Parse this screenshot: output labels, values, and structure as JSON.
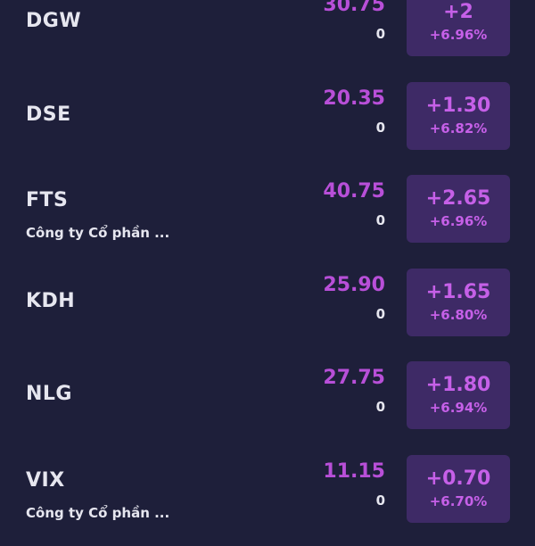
{
  "stocks": [
    {
      "ticker": "DGW",
      "company": "",
      "price": "30.75",
      "volume": "0",
      "change": "+2",
      "change_pct": "+6.96%"
    },
    {
      "ticker": "DSE",
      "company": "",
      "price": "20.35",
      "volume": "0",
      "change": "+1.30",
      "change_pct": "+6.82%"
    },
    {
      "ticker": "FTS",
      "company": "Công ty Cổ phần ...",
      "price": "40.75",
      "volume": "0",
      "change": "+2.65",
      "change_pct": "+6.96%"
    },
    {
      "ticker": "KDH",
      "company": "",
      "price": "25.90",
      "volume": "0",
      "change": "+1.65",
      "change_pct": "+6.80%"
    },
    {
      "ticker": "NLG",
      "company": "",
      "price": "27.75",
      "volume": "0",
      "change": "+1.80",
      "change_pct": "+6.94%"
    },
    {
      "ticker": "VIX",
      "company": "Công ty Cổ phần ...",
      "price": "11.15",
      "volume": "0",
      "change": "+0.70",
      "change_pct": "+6.70%"
    }
  ]
}
